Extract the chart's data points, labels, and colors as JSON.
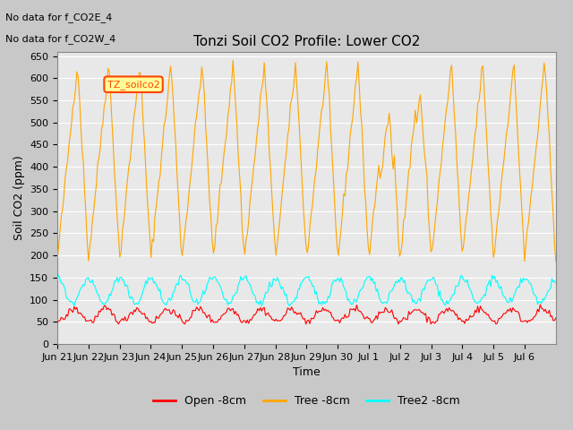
{
  "title": "Tonzi Soil CO2 Profile: Lower CO2",
  "xlabel": "Time",
  "ylabel": "Soil CO2 (ppm)",
  "ylim": [
    0,
    660
  ],
  "yticks": [
    0,
    50,
    100,
    150,
    200,
    250,
    300,
    350,
    400,
    450,
    500,
    550,
    600,
    650
  ],
  "note1": "No data for f_CO2E_4",
  "note2": "No data for f_CO2W_4",
  "cursor_label": "TZ_soilco2",
  "cursor_color": "#FF4400",
  "cursor_bg": "#FFFF99",
  "legend_entries": [
    "Open -8cm",
    "Tree -8cm",
    "Tree2 -8cm"
  ],
  "legend_colors": [
    "#FF0000",
    "#FFA500",
    "#00FFFF"
  ],
  "tree_color": "#FFA500",
  "open_color": "#FF0000",
  "tree2_color": "#00FFFF",
  "fig_bg": "#C8C8C8",
  "plot_bg": "#E8E8E8",
  "tree_min": 190,
  "tree_max": 635,
  "xtick_labels": [
    "Jun 21",
    "Jun 22",
    "Jun 23",
    "Jun 24",
    "Jun 25",
    "Jun 26",
    "Jun 27",
    "Jun 28",
    "Jun 29",
    "Jun 30",
    "Jul 1",
    "Jul 2",
    "Jul 3",
    "Jul 4",
    "Jul 5",
    "Jul 6"
  ]
}
